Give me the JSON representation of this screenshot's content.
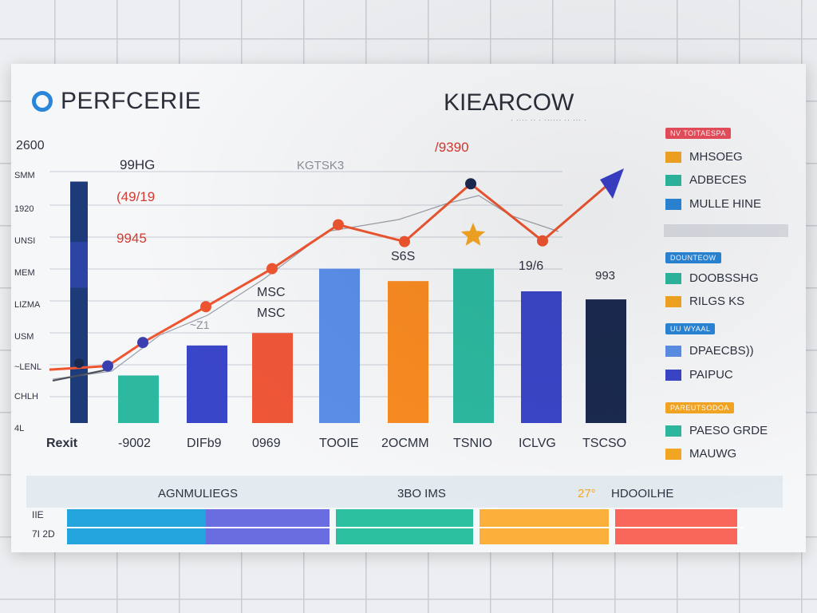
{
  "header": {
    "title": "PERFCERIE",
    "brand": "KIEARCOW",
    "brand_sub": "· ···· ·· · ······ ·· ··· ·"
  },
  "chart_data": {
    "type": "bar",
    "title": "PERFCERIE",
    "y_tick_labels": [
      "2600",
      "SMM",
      "1920",
      "UNSI",
      "MEM",
      "LIZMA",
      "USM",
      "~LENL",
      "CHLH",
      "4L"
    ],
    "categories": [
      "Rexit",
      "-9002",
      "DIFb9",
      "0969",
      "TOOIE",
      "2OCMM",
      "TSNIO",
      "ICLVG",
      "TSCSO"
    ],
    "bars": [
      {
        "value": 330,
        "color": "#1d3b78"
      },
      {
        "value": 65,
        "color": "#2db9a0"
      },
      {
        "value": 106,
        "color": "#3a46c8"
      },
      {
        "value": 123,
        "color": "#ef5638"
      },
      {
        "value": 211,
        "color": "#5b8ee8"
      },
      {
        "value": 194,
        "color": "#f98b22"
      },
      {
        "value": 211,
        "color": "#2db9a0"
      },
      {
        "value": 180,
        "color": "#3a46c8"
      },
      {
        "value": 169,
        "color": "#1a2a4f"
      }
    ],
    "line_series": {
      "color": "#ee5530",
      "values": [
        73,
        78,
        110,
        159,
        211,
        271,
        248,
        327,
        249,
        324
      ]
    },
    "dark_markers": [
      1,
      2,
      7
    ],
    "star_index": 6,
    "ylim": [
      0,
      360
    ],
    "annotations": [
      {
        "text": "99HG",
        "color": "#2d3240"
      },
      {
        "text": "(49/19",
        "color": "#d83a30"
      },
      {
        "text": "9945",
        "color": "#d83a30"
      },
      {
        "text": "KGTSK3",
        "color": "#8a8f99"
      },
      {
        "text": "/9390",
        "color": "#d83a30"
      },
      {
        "text": "S6S",
        "color": "#2d3240"
      },
      {
        "text": "MSC",
        "color": "#2d3240"
      },
      {
        "text": "MSC",
        "color": "#2d3240"
      },
      {
        "text": "19/6",
        "color": "#2d3240"
      },
      {
        "text": "993",
        "color": "#2d3240"
      },
      {
        "text": "~Z1",
        "color": "#8a8f99"
      }
    ]
  },
  "legend": {
    "groups": [
      {
        "tag": "NV TOITAESPA",
        "tag_color": "#e84e5c",
        "items": [
          {
            "label": "MHSOEG",
            "color": "#f5a623"
          },
          {
            "label": "ADBECES",
            "color": "#2db9a0"
          },
          {
            "label": "MULLE HINE",
            "color": "#2a86d8"
          }
        ]
      },
      {
        "tag": "DOUNTEOW",
        "tag_color": "#2a86d8",
        "items": [
          {
            "label": "DOOBSSHG",
            "color": "#2db9a0"
          },
          {
            "label": "RILGS KS",
            "color": "#f5a623"
          }
        ]
      },
      {
        "tag": "UU WYAAL",
        "tag_color": "#2a86d8",
        "items": [
          {
            "label": "DPAECBS))",
            "color": "#5b8ee8"
          },
          {
            "label": "PAIPUC",
            "color": "#3a46c8"
          }
        ]
      },
      {
        "tag": "PAREUTSODOA",
        "tag_color": "#f5a623",
        "items": [
          {
            "label": "PAESO GRDE",
            "color": "#2db9a0"
          },
          {
            "label": "MAUWG",
            "color": "#f5a623"
          }
        ]
      }
    ]
  },
  "footer": {
    "labels": [
      "AGNMULIEGS",
      "3BO IMS",
      "27°",
      "HDOOILHE"
    ],
    "label_colors": [
      "#2d3240",
      "#2d3240",
      "#f5a623",
      "#2d3240"
    ],
    "row_labels": [
      "IIE",
      "7I 2D"
    ],
    "progress": [
      {
        "color": "#24a4dc",
        "fraction": 0.195
      },
      {
        "color": "#6a6de0",
        "fraction": 0.174
      },
      {
        "color": "#2dc0a0",
        "fraction": 0.193
      },
      {
        "color": "#fbb03b",
        "fraction": 0.182
      },
      {
        "color": "#f9665a",
        "fraction": 0.172
      }
    ]
  }
}
